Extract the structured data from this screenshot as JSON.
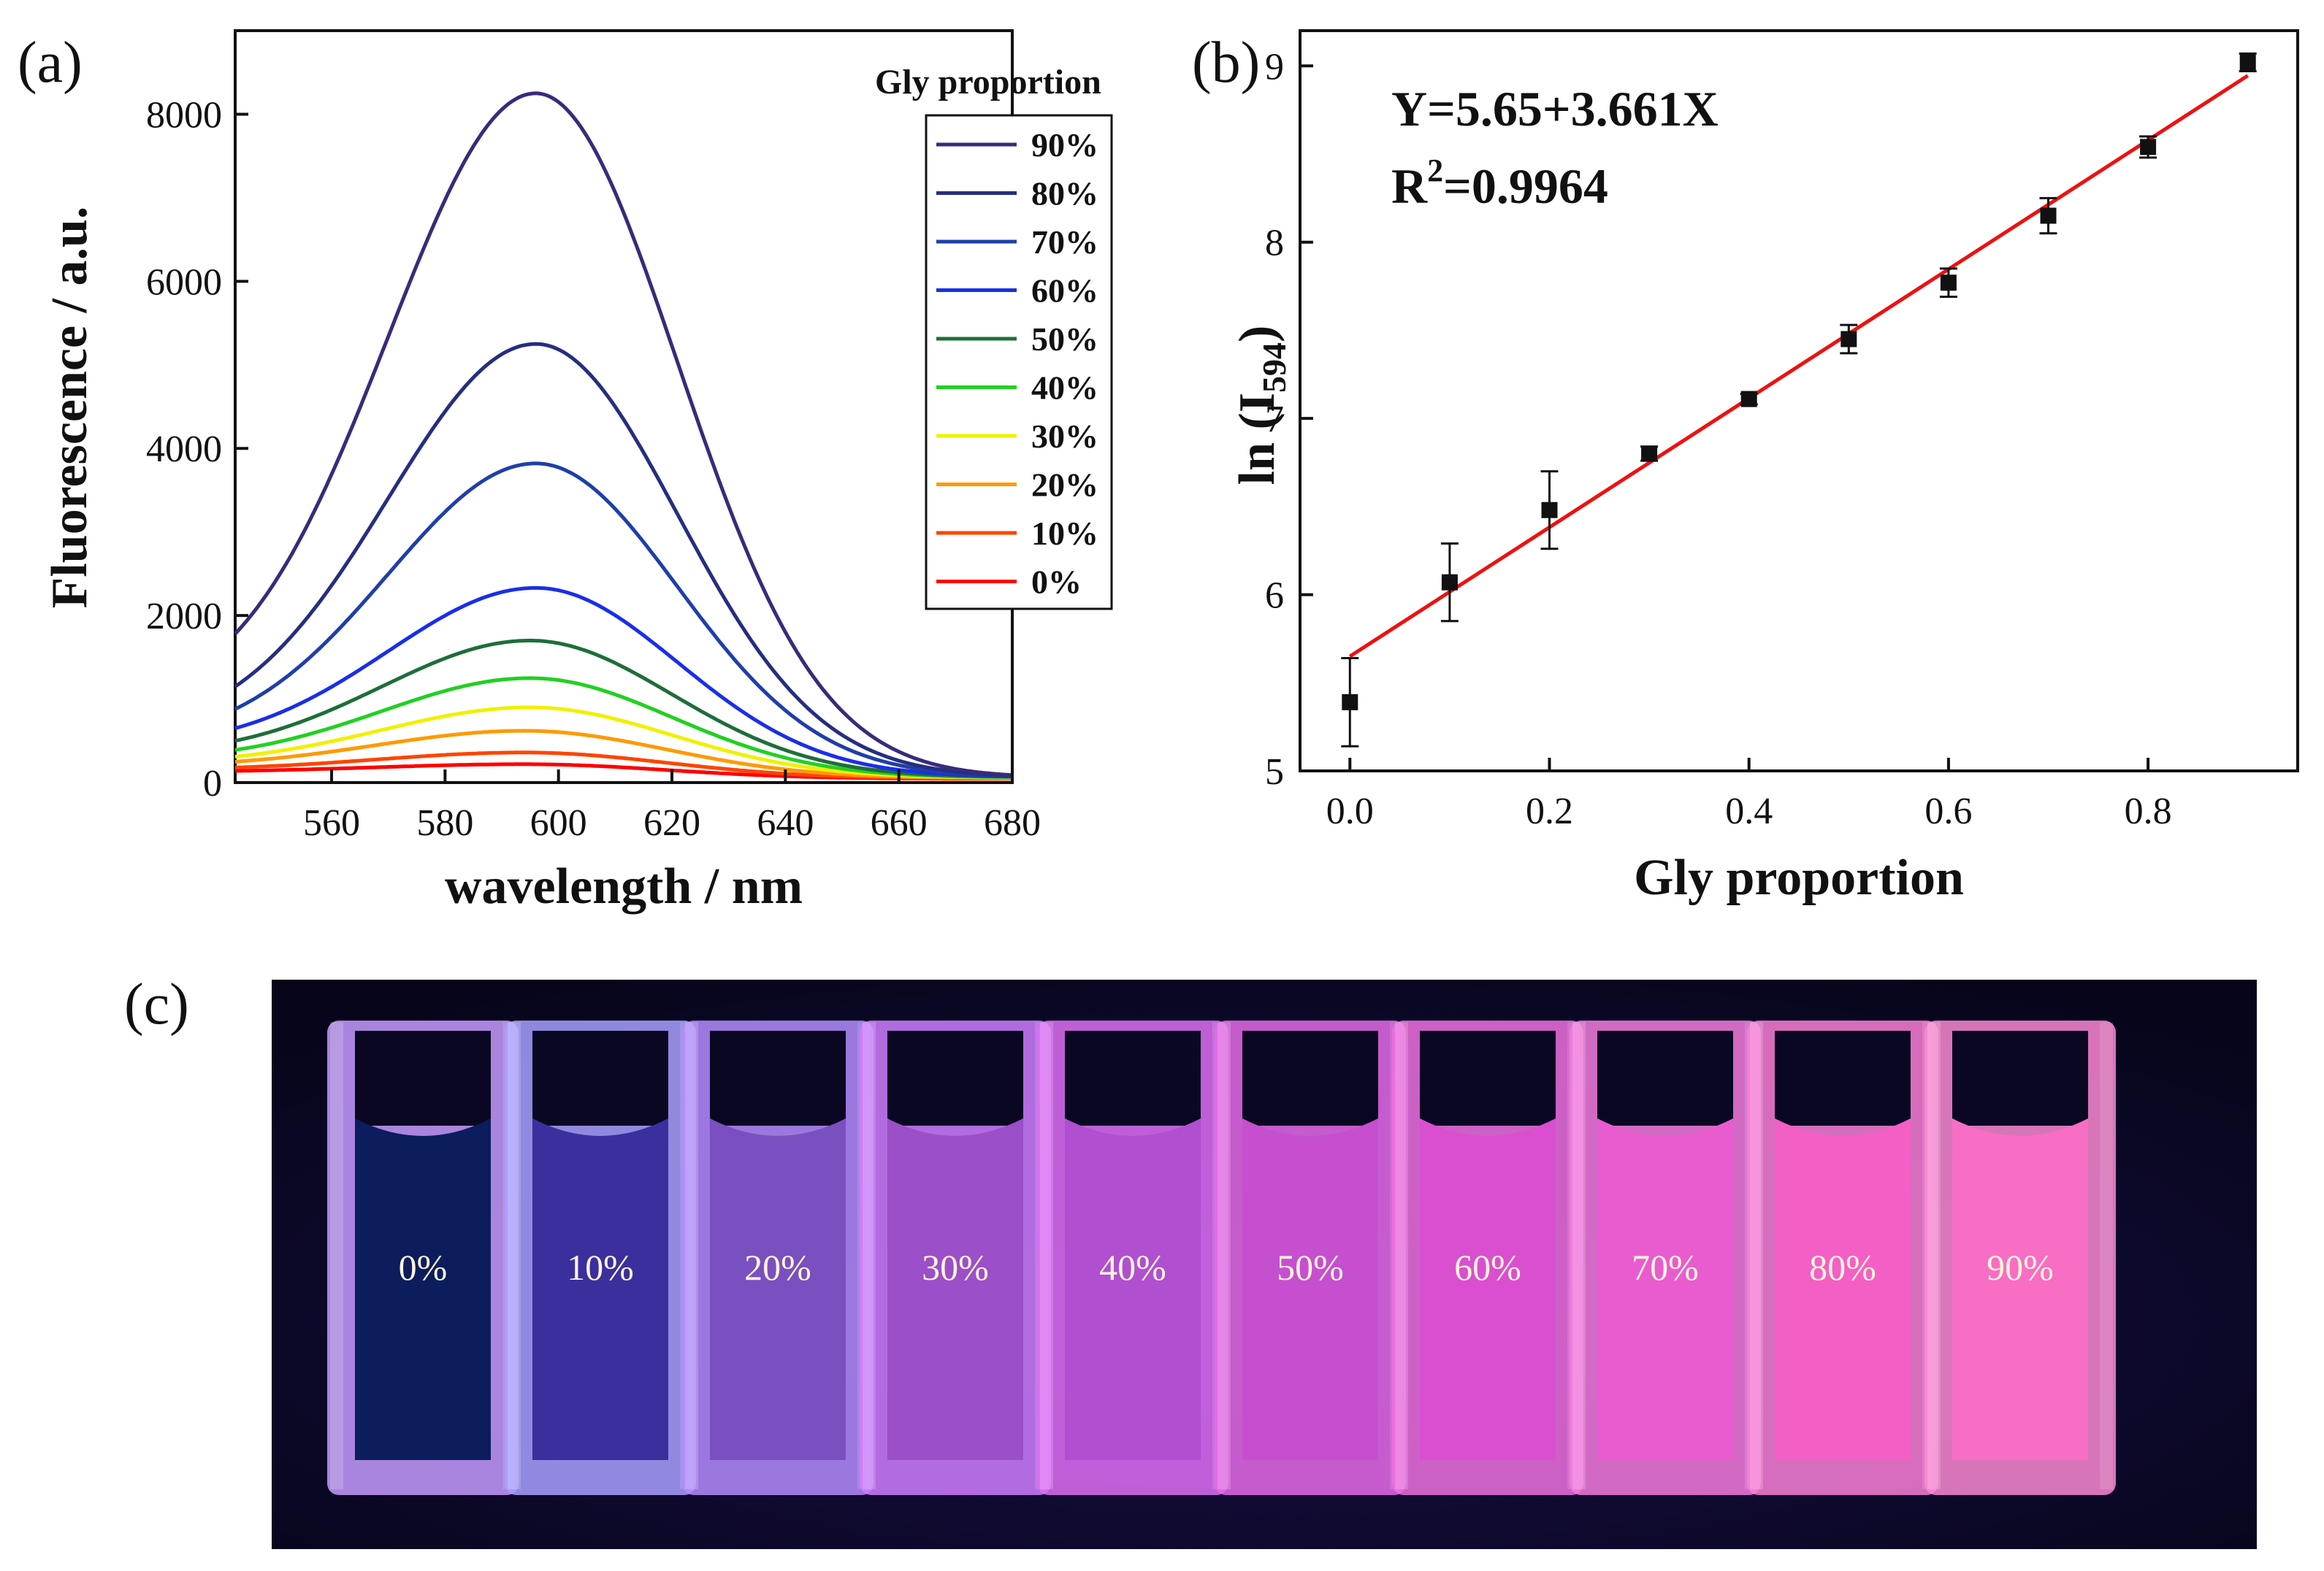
{
  "panel_labels": {
    "a": "(a)",
    "b": "(b)",
    "c": "(c)"
  },
  "chart_data": [
    {
      "id": "a",
      "type": "line",
      "xlabel": "wavelength / nm",
      "ylabel": "Fluorescence / a.u.",
      "xlim": [
        543,
        680
      ],
      "ylim": [
        0,
        9000
      ],
      "xticks": [
        560,
        580,
        600,
        620,
        640,
        660,
        680
      ],
      "yticks": [
        0,
        2000,
        4000,
        6000,
        8000
      ],
      "legend_title": "Gly proportion",
      "legend_position": "top-right",
      "series": [
        {
          "name": "90%",
          "color": "#3a2a7a",
          "peak": 8250,
          "start": 1780,
          "end": 90,
          "peak_x": 596
        },
        {
          "name": "80%",
          "color": "#252e80",
          "peak": 5250,
          "start": 1150,
          "end": 85,
          "peak_x": 596
        },
        {
          "name": "70%",
          "color": "#1f3fa8",
          "peak": 3820,
          "start": 880,
          "end": 80,
          "peak_x": 596
        },
        {
          "name": "60%",
          "color": "#1a2ee8",
          "peak": 2330,
          "start": 650,
          "end": 75,
          "peak_x": 596
        },
        {
          "name": "50%",
          "color": "#1e6e3a",
          "peak": 1700,
          "start": 500,
          "end": 70,
          "peak_x": 595
        },
        {
          "name": "40%",
          "color": "#22d022",
          "peak": 1250,
          "start": 390,
          "end": 65,
          "peak_x": 595
        },
        {
          "name": "30%",
          "color": "#f0f000",
          "peak": 900,
          "start": 310,
          "end": 60,
          "peak_x": 595
        },
        {
          "name": "20%",
          "color": "#ff9a00",
          "peak": 620,
          "start": 250,
          "end": 55,
          "peak_x": 594
        },
        {
          "name": "10%",
          "color": "#ff4400",
          "peak": 360,
          "start": 180,
          "end": 50,
          "peak_x": 594
        },
        {
          "name": "0%",
          "color": "#ff0000",
          "peak": 220,
          "start": 140,
          "end": 45,
          "peak_x": 594
        }
      ]
    },
    {
      "id": "b",
      "type": "scatter",
      "xlabel": "Gly proportion",
      "ylabel_main": "ln (I",
      "ylabel_sub": "594",
      "ylabel_close": ")",
      "xlim": [
        -0.05,
        0.95
      ],
      "ylim": [
        5,
        9.2
      ],
      "xticks": [
        "0.0",
        "0.2",
        "0.4",
        "0.6",
        "0.8"
      ],
      "yticks": [
        "5",
        "6",
        "7",
        "8",
        "9"
      ],
      "points": [
        {
          "x": 0.0,
          "y": 5.39,
          "err": 0.25
        },
        {
          "x": 0.1,
          "y": 6.07,
          "err": 0.22
        },
        {
          "x": 0.2,
          "y": 6.48,
          "err": 0.22
        },
        {
          "x": 0.3,
          "y": 6.8,
          "err": 0.04
        },
        {
          "x": 0.4,
          "y": 7.11,
          "err": 0.03
        },
        {
          "x": 0.5,
          "y": 7.45,
          "err": 0.08
        },
        {
          "x": 0.6,
          "y": 7.77,
          "err": 0.08
        },
        {
          "x": 0.7,
          "y": 8.15,
          "err": 0.1
        },
        {
          "x": 0.8,
          "y": 8.54,
          "err": 0.06
        },
        {
          "x": 0.9,
          "y": 9.02,
          "err": 0.05
        }
      ],
      "fit": {
        "intercept": 5.65,
        "slope": 3.661,
        "x_range": [
          0.0,
          0.9
        ],
        "color": "#ee1111"
      },
      "equation_text": "Y=5.65+3.661X",
      "r2_prefix": "R",
      "r2_sup": "2",
      "r2_value": "=0.9964"
    }
  ],
  "photo": {
    "cuvettes": [
      "0%",
      "10%",
      "20%",
      "30%",
      "40%",
      "50%",
      "60%",
      "70%",
      "80%",
      "90%"
    ],
    "liquid_colors": [
      "#0c1d5e",
      "#3b2f9e",
      "#7a4fc0",
      "#9b4fc8",
      "#b04fd0",
      "#c64fd0",
      "#d94fd0",
      "#e85cd0",
      "#f45fc6",
      "#f76ec4"
    ],
    "glass_colors": [
      "#c79bff",
      "#a8a0ff",
      "#b48cff",
      "#cf7dff",
      "#de6ff6",
      "#e56ae8",
      "#ee70e0",
      "#f47bde",
      "#fa7fd6",
      "#fb88d4"
    ]
  }
}
